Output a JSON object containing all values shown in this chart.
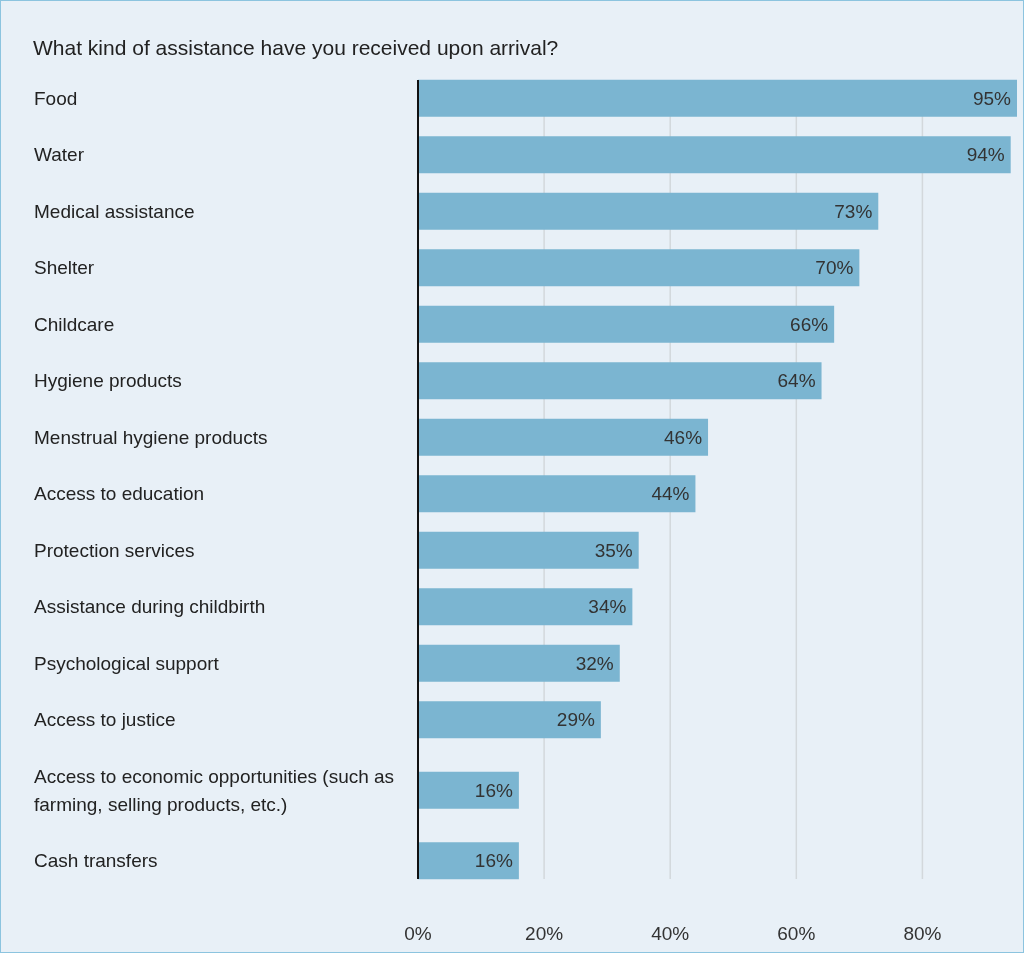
{
  "chart_data": {
    "type": "bar",
    "orientation": "horizontal",
    "title": "What kind of assistance have you received upon arrival?",
    "categories": [
      "Food",
      "Water",
      "Medical assistance",
      "Shelter",
      "Childcare",
      "Hygiene products",
      "Menstrual hygiene products",
      "Access to education",
      "Protection services",
      "Assistance during childbirth",
      "Psychological support",
      "Access to justice",
      "Access to economic opportunities (such as farming, selling products, etc.)",
      "Cash transfers"
    ],
    "values": [
      95,
      94,
      73,
      70,
      66,
      64,
      46,
      44,
      35,
      34,
      32,
      29,
      16,
      16
    ],
    "value_labels": [
      "95%",
      "94%",
      "73%",
      "70%",
      "66%",
      "64%",
      "46%",
      "44%",
      "35%",
      "34%",
      "32%",
      "29%",
      "16%",
      "16%"
    ],
    "color": "#7bb5d1",
    "xlim": [
      0,
      95
    ],
    "xticks": [
      {
        "value": 0,
        "label": "0%"
      },
      {
        "value": 20,
        "label": "20%"
      },
      {
        "value": 40,
        "label": "40%"
      },
      {
        "value": 60,
        "label": "60%"
      },
      {
        "value": 80,
        "label": "80%"
      }
    ],
    "grid": "x"
  }
}
